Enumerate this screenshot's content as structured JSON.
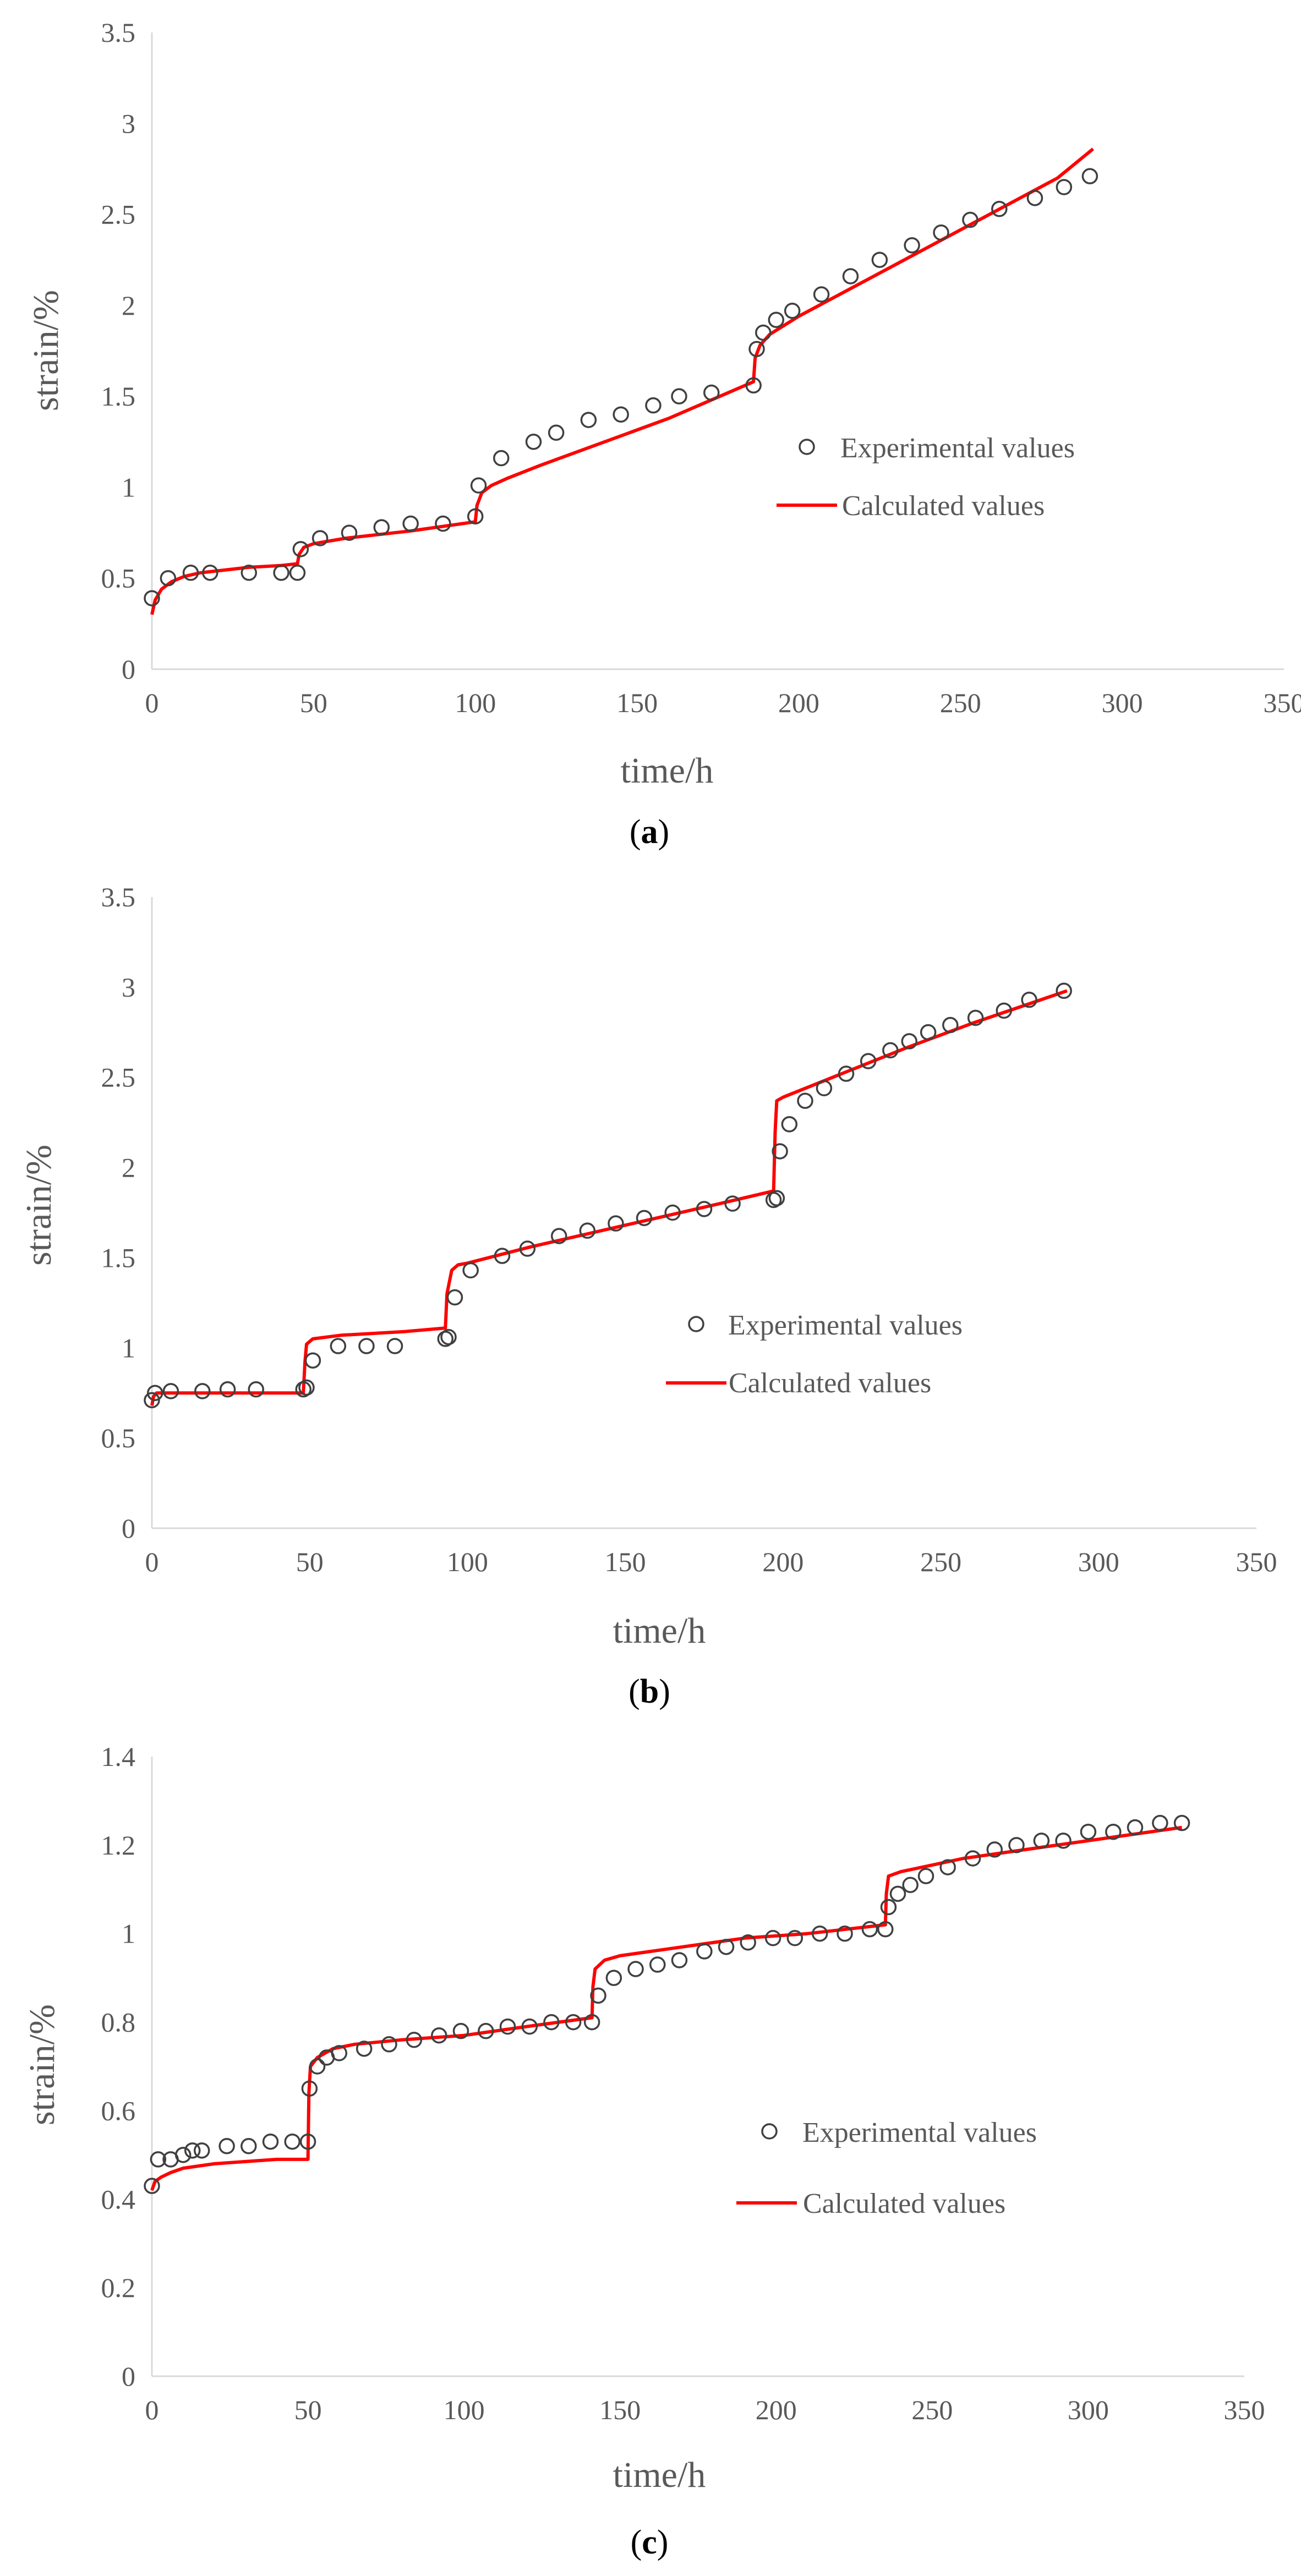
{
  "colors": {
    "axis": "#d9d9d9",
    "tick_text": "#595959",
    "marker": "#404040",
    "calculated_line": "#ff0000"
  },
  "chart_data": [
    {
      "type": "scatter",
      "caption_letter": "a",
      "xlabel": "time/h",
      "ylabel": "strain/%",
      "xlim": [
        0,
        350
      ],
      "ylim": [
        0,
        3.5
      ],
      "xticks": [
        "0",
        "50",
        "100",
        "150",
        "200",
        "250",
        "300",
        "350"
      ],
      "yticks": [
        "0",
        "0.5",
        "1",
        "1.5",
        "2",
        "2.5",
        "3",
        "3.5"
      ],
      "grid": false,
      "legend_position": "right-middle",
      "series": [
        {
          "name": "Experimental values",
          "marker": "open-circle",
          "x": [
            0,
            5,
            12,
            18,
            30,
            40,
            45,
            46,
            52,
            61,
            71,
            80,
            90,
            100,
            101,
            108,
            118,
            125,
            135,
            145,
            155,
            163,
            173,
            186,
            187,
            189,
            193,
            198,
            207,
            216,
            225,
            235,
            244,
            253,
            262,
            273,
            282,
            290
          ],
          "y": [
            0.39,
            0.5,
            0.53,
            0.53,
            0.53,
            0.53,
            0.53,
            0.66,
            0.72,
            0.75,
            0.78,
            0.8,
            0.8,
            0.84,
            1.01,
            1.16,
            1.25,
            1.3,
            1.37,
            1.4,
            1.45,
            1.5,
            1.52,
            1.56,
            1.76,
            1.85,
            1.92,
            1.97,
            2.06,
            2.16,
            2.25,
            2.33,
            2.4,
            2.47,
            2.53,
            2.59,
            2.65,
            2.71
          ]
        },
        {
          "name": "Calculated values",
          "line": true,
          "x": [
            0,
            1,
            3,
            6,
            10,
            15,
            20,
            30,
            40,
            45,
            45.5,
            47,
            50,
            60,
            80,
            100,
            100.5,
            102,
            105,
            110,
            120,
            140,
            160,
            186,
            186.5,
            188,
            191,
            200,
            220,
            240,
            260,
            280,
            291
          ],
          "y": [
            0.3,
            0.38,
            0.44,
            0.48,
            0.51,
            0.53,
            0.54,
            0.56,
            0.57,
            0.58,
            0.63,
            0.67,
            0.69,
            0.72,
            0.76,
            0.81,
            0.9,
            0.97,
            1.01,
            1.05,
            1.12,
            1.25,
            1.38,
            1.58,
            1.71,
            1.78,
            1.84,
            1.94,
            2.13,
            2.32,
            2.51,
            2.7,
            2.86
          ]
        }
      ]
    },
    {
      "type": "scatter",
      "caption_letter": "b",
      "xlabel": "time/h",
      "ylabel": "strain/%",
      "xlim": [
        0,
        350
      ],
      "ylim": [
        0,
        3.5
      ],
      "xticks": [
        "0",
        "50",
        "100",
        "150",
        "200",
        "250",
        "300",
        "350"
      ],
      "yticks": [
        "0",
        "0.5",
        "1",
        "1.5",
        "2",
        "2.5",
        "3",
        "3.5"
      ],
      "grid": false,
      "legend_position": "right-middle",
      "series": [
        {
          "name": "Experimental values",
          "marker": "open-circle",
          "x": [
            0,
            1,
            6,
            16,
            24,
            33,
            48,
            49,
            51,
            59,
            68,
            77,
            93,
            94,
            96,
            101,
            111,
            119,
            129,
            138,
            147,
            156,
            165,
            175,
            184,
            197,
            198,
            199,
            202,
            207,
            213,
            220,
            227,
            234,
            240,
            246,
            253,
            261,
            270,
            278,
            289
          ],
          "y": [
            0.71,
            0.75,
            0.76,
            0.76,
            0.77,
            0.77,
            0.77,
            0.78,
            0.93,
            1.01,
            1.01,
            1.01,
            1.05,
            1.06,
            1.28,
            1.43,
            1.51,
            1.55,
            1.62,
            1.65,
            1.69,
            1.72,
            1.75,
            1.77,
            1.8,
            1.82,
            1.83,
            2.09,
            2.24,
            2.37,
            2.44,
            2.52,
            2.59,
            2.65,
            2.7,
            2.75,
            2.79,
            2.83,
            2.87,
            2.93,
            2.98
          ]
        },
        {
          "name": "Calculated values",
          "line": true,
          "x": [
            0,
            0.5,
            1.5,
            5,
            20,
            40,
            48,
            48.5,
            49,
            51,
            60,
            80,
            93,
            93.5,
            95,
            97,
            100,
            120,
            140,
            160,
            180,
            197,
            197.5,
            198,
            200,
            220,
            240,
            260,
            280,
            290
          ],
          "y": [
            0.68,
            0.73,
            0.75,
            0.75,
            0.75,
            0.75,
            0.75,
            0.92,
            1.02,
            1.05,
            1.07,
            1.09,
            1.11,
            1.3,
            1.43,
            1.46,
            1.47,
            1.56,
            1.64,
            1.72,
            1.8,
            1.87,
            2.2,
            2.37,
            2.39,
            2.53,
            2.67,
            2.8,
            2.92,
            2.98
          ]
        }
      ]
    },
    {
      "type": "scatter",
      "caption_letter": "c",
      "xlabel": "time/h",
      "ylabel": "strain/%",
      "xlim": [
        0,
        350
      ],
      "ylim": [
        0,
        1.4
      ],
      "xticks": [
        "0",
        "50",
        "100",
        "150",
        "200",
        "250",
        "300",
        "350"
      ],
      "yticks": [
        "0",
        "0.2",
        "0.4",
        "0.6",
        "0.8",
        "1",
        "1.2",
        "1.4"
      ],
      "grid": false,
      "legend_position": "right-middle",
      "series": [
        {
          "name": "Experimental values",
          "marker": "open-circle",
          "x": [
            0,
            2,
            6,
            10,
            13,
            16,
            24,
            31,
            38,
            45,
            50,
            50.5,
            53,
            56,
            60,
            68,
            76,
            84,
            92,
            99,
            107,
            114,
            121,
            128,
            135,
            141,
            143,
            148,
            155,
            162,
            169,
            177,
            184,
            191,
            199,
            206,
            214,
            222,
            230,
            235,
            236,
            239,
            243,
            248,
            255,
            263,
            270,
            277,
            285,
            292,
            300,
            308,
            315,
            323,
            330
          ],
          "y": [
            0.43,
            0.49,
            0.49,
            0.5,
            0.51,
            0.51,
            0.52,
            0.52,
            0.53,
            0.53,
            0.53,
            0.65,
            0.7,
            0.72,
            0.73,
            0.74,
            0.75,
            0.76,
            0.77,
            0.78,
            0.78,
            0.79,
            0.79,
            0.8,
            0.8,
            0.8,
            0.86,
            0.9,
            0.92,
            0.93,
            0.94,
            0.96,
            0.97,
            0.98,
            0.99,
            0.99,
            1.0,
            1.0,
            1.01,
            1.01,
            1.06,
            1.09,
            1.11,
            1.13,
            1.15,
            1.17,
            1.19,
            1.2,
            1.21,
            1.21,
            1.23,
            1.23,
            1.24,
            1.25,
            1.25
          ]
        },
        {
          "name": "Calculated values",
          "line": true,
          "x": [
            0,
            1,
            3,
            6,
            10,
            20,
            30,
            40,
            50,
            50.3,
            50.8,
            53,
            58,
            65,
            80,
            100,
            120,
            141,
            141.3,
            142,
            145,
            150,
            170,
            190,
            210,
            235,
            235.3,
            236,
            240,
            260,
            280,
            300,
            330
          ],
          "y": [
            0.42,
            0.44,
            0.45,
            0.46,
            0.47,
            0.48,
            0.485,
            0.49,
            0.49,
            0.64,
            0.7,
            0.72,
            0.74,
            0.75,
            0.76,
            0.77,
            0.79,
            0.81,
            0.88,
            0.92,
            0.94,
            0.95,
            0.97,
            0.99,
            1.0,
            1.02,
            1.09,
            1.13,
            1.14,
            1.17,
            1.19,
            1.21,
            1.24
          ]
        }
      ]
    }
  ]
}
